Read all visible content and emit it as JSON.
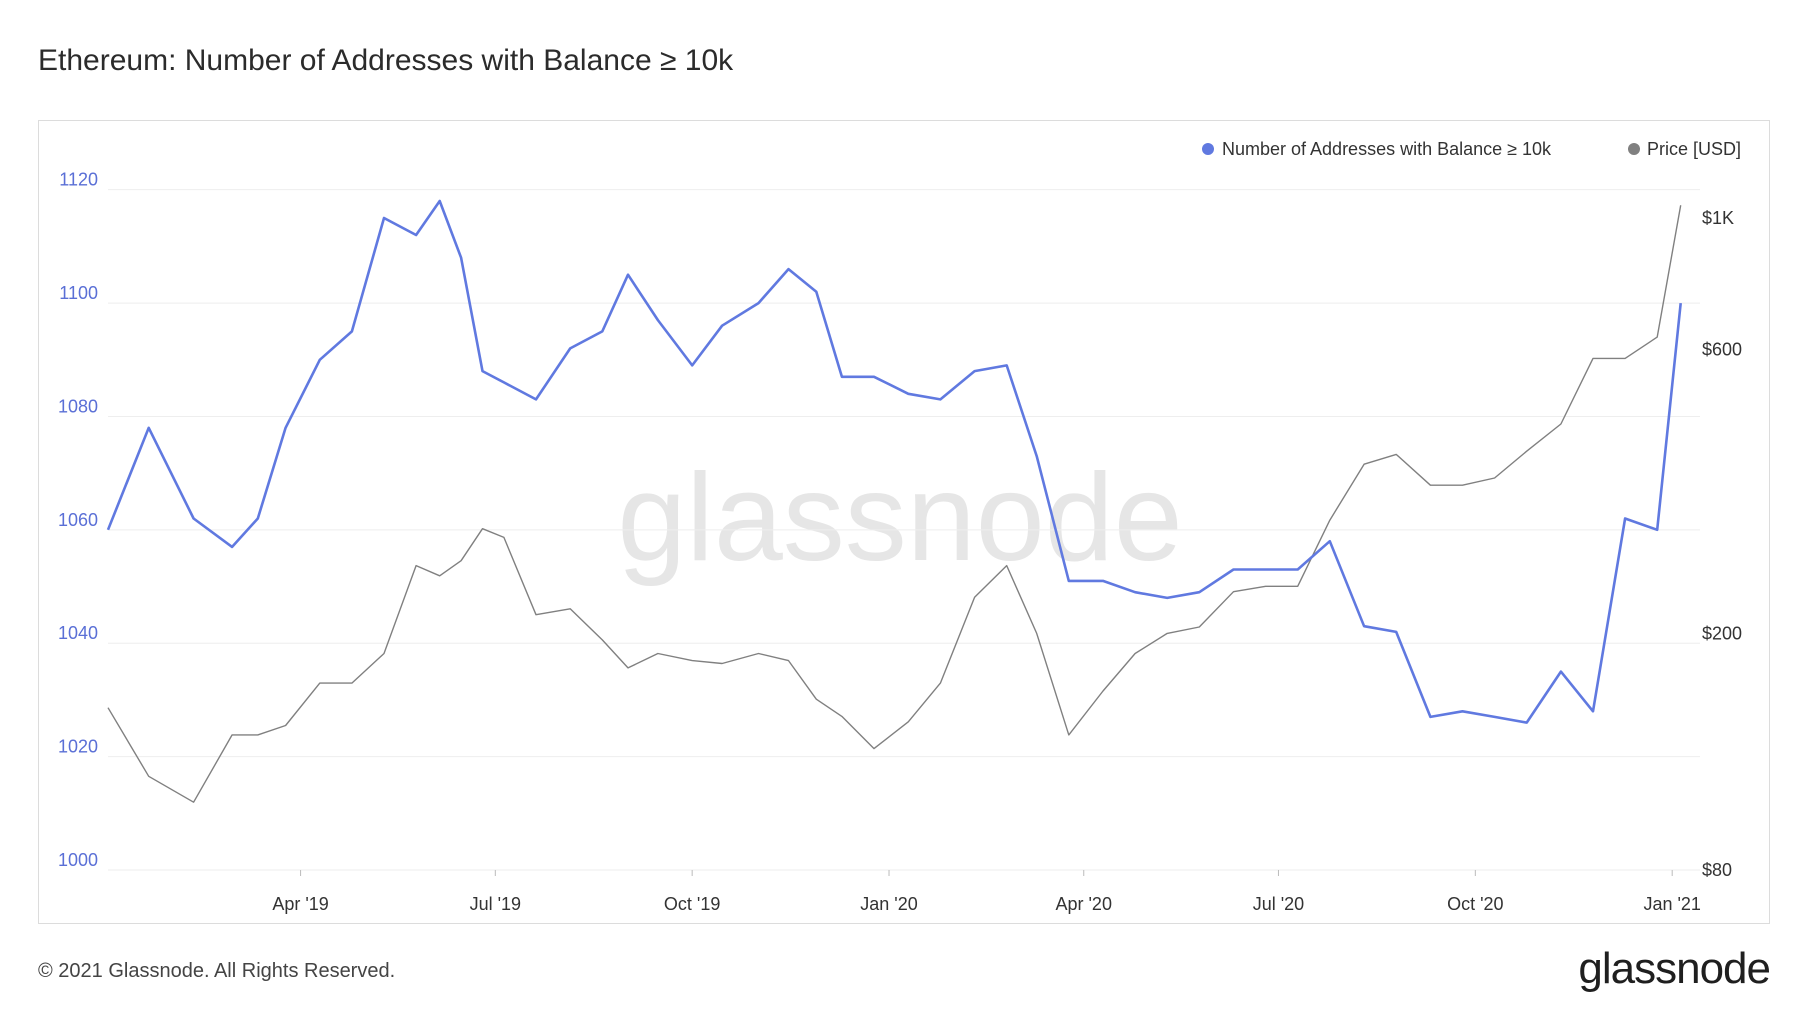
{
  "title": "Ethereum: Number of Addresses with Balance ≥ 10k",
  "footer": "© 2021 Glassnode. All Rights Reserved.",
  "brand": "glassnode",
  "watermark": "glassnode",
  "colors": {
    "addresses": "#6079e0",
    "price": "#808080",
    "grid": "#eeeeee",
    "axis_left": "#5a6fd6"
  },
  "chart_data": {
    "type": "line",
    "legend_position": "top-right",
    "grid": true,
    "series": [
      {
        "name": "Number of Addresses with Balance ≥ 10k",
        "axis": "left",
        "x": [
          "2019-01-01",
          "2019-01-20",
          "2019-02-10",
          "2019-02-28",
          "2019-03-12",
          "2019-03-25",
          "2019-04-10",
          "2019-04-25",
          "2019-05-10",
          "2019-05-25",
          "2019-06-05",
          "2019-06-15",
          "2019-06-25",
          "2019-07-05",
          "2019-07-20",
          "2019-08-05",
          "2019-08-20",
          "2019-09-01",
          "2019-09-15",
          "2019-10-01",
          "2019-10-15",
          "2019-11-01",
          "2019-11-15",
          "2019-11-28",
          "2019-12-10",
          "2019-12-25",
          "2020-01-10",
          "2020-01-25",
          "2020-02-10",
          "2020-02-25",
          "2020-03-10",
          "2020-03-25",
          "2020-04-10",
          "2020-04-25",
          "2020-05-10",
          "2020-05-25",
          "2020-06-10",
          "2020-06-25",
          "2020-07-10",
          "2020-07-25",
          "2020-08-10",
          "2020-08-25",
          "2020-09-10",
          "2020-09-25",
          "2020-10-10",
          "2020-10-25",
          "2020-11-10",
          "2020-11-25",
          "2020-12-10",
          "2020-12-25",
          "2021-01-05"
        ],
        "values": [
          1060,
          1078,
          1062,
          1057,
          1062,
          1078,
          1090,
          1095,
          1115,
          1112,
          1118,
          1108,
          1088,
          1086,
          1083,
          1092,
          1095,
          1105,
          1097,
          1089,
          1096,
          1100,
          1106,
          1102,
          1087,
          1087,
          1084,
          1083,
          1088,
          1089,
          1073,
          1051,
          1051,
          1049,
          1048,
          1049,
          1053,
          1053,
          1053,
          1058,
          1043,
          1042,
          1027,
          1028,
          1027,
          1026,
          1035,
          1028,
          1062,
          1060,
          1100
        ]
      },
      {
        "name": "Price [USD]",
        "axis": "right",
        "x": [
          "2019-01-01",
          "2019-01-20",
          "2019-02-10",
          "2019-02-28",
          "2019-03-12",
          "2019-03-25",
          "2019-04-10",
          "2019-04-25",
          "2019-05-10",
          "2019-05-25",
          "2019-06-05",
          "2019-06-15",
          "2019-06-25",
          "2019-07-05",
          "2019-07-20",
          "2019-08-05",
          "2019-08-20",
          "2019-09-01",
          "2019-09-15",
          "2019-10-01",
          "2019-10-15",
          "2019-11-01",
          "2019-11-15",
          "2019-11-28",
          "2019-12-10",
          "2019-12-25",
          "2020-01-10",
          "2020-01-25",
          "2020-02-10",
          "2020-02-25",
          "2020-03-10",
          "2020-03-25",
          "2020-04-10",
          "2020-04-25",
          "2020-05-10",
          "2020-05-25",
          "2020-06-10",
          "2020-06-25",
          "2020-07-10",
          "2020-07-25",
          "2020-08-10",
          "2020-08-25",
          "2020-09-10",
          "2020-09-25",
          "2020-10-10",
          "2020-10-25",
          "2020-11-10",
          "2020-11-25",
          "2020-12-10",
          "2020-12-25",
          "2021-01-05"
        ],
        "values": [
          150,
          115,
          104,
          135,
          135,
          140,
          165,
          165,
          185,
          260,
          250,
          265,
          300,
          290,
          215,
          220,
          195,
          175,
          185,
          180,
          178,
          185,
          180,
          155,
          145,
          128,
          142,
          165,
          230,
          260,
          200,
          135,
          160,
          185,
          200,
          205,
          235,
          240,
          240,
          310,
          385,
          400,
          355,
          355,
          365,
          405,
          450,
          580,
          580,
          630,
          1050
        ]
      }
    ],
    "x_ticks": [
      "Apr '19",
      "Jul '19",
      "Oct '19",
      "Jan '20",
      "Apr '20",
      "Jul '20",
      "Oct '20",
      "Jan '21"
    ],
    "xlim": [
      "2019-01-01",
      "2021-01-14"
    ],
    "y_left": {
      "ticks": [
        1000,
        1020,
        1040,
        1060,
        1080,
        1100,
        1120
      ],
      "ylim": [
        1000,
        1127
      ]
    },
    "y_right": {
      "scale": "log",
      "ticks": [
        80,
        200,
        600,
        1000
      ],
      "tick_labels": [
        "$80",
        "$200",
        "$600",
        "$1K"
      ],
      "ylim": [
        80,
        1300
      ]
    }
  }
}
